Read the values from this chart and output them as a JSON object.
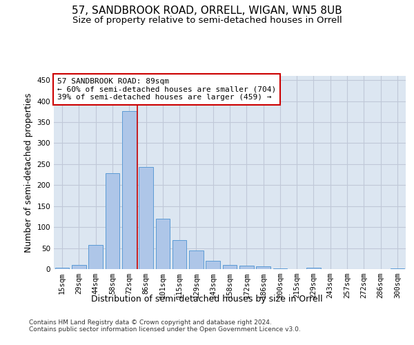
{
  "title_line1": "57, SANDBROOK ROAD, ORRELL, WIGAN, WN5 8UB",
  "title_line2": "Size of property relative to semi-detached houses in Orrell",
  "xlabel": "Distribution of semi-detached houses by size in Orrell",
  "ylabel": "Number of semi-detached properties",
  "categories": [
    "15sqm",
    "29sqm",
    "44sqm",
    "58sqm",
    "72sqm",
    "86sqm",
    "101sqm",
    "115sqm",
    "129sqm",
    "143sqm",
    "158sqm",
    "172sqm",
    "186sqm",
    "200sqm",
    "215sqm",
    "229sqm",
    "243sqm",
    "257sqm",
    "272sqm",
    "286sqm",
    "300sqm"
  ],
  "values": [
    3,
    10,
    58,
    229,
    376,
    243,
    120,
    69,
    44,
    20,
    10,
    9,
    7,
    1,
    0,
    3,
    0,
    0,
    0,
    0,
    1
  ],
  "bar_color": "#aec6e8",
  "bar_edge_color": "#5b9bd5",
  "grid_color": "#c0c8d8",
  "background_color": "#dce6f1",
  "annotation_box_text": "57 SANDBROOK ROAD: 89sqm\n← 60% of semi-detached houses are smaller (704)\n39% of semi-detached houses are larger (459) →",
  "vline_x_index": 4,
  "vline_color": "#cc0000",
  "ylim": [
    0,
    460
  ],
  "yticks": [
    0,
    50,
    100,
    150,
    200,
    250,
    300,
    350,
    400,
    450
  ],
  "footer_text": "Contains HM Land Registry data © Crown copyright and database right 2024.\nContains public sector information licensed under the Open Government Licence v3.0.",
  "title_fontsize": 11,
  "subtitle_fontsize": 9.5,
  "axis_label_fontsize": 9,
  "tick_fontsize": 7.5,
  "annotation_fontsize": 8
}
